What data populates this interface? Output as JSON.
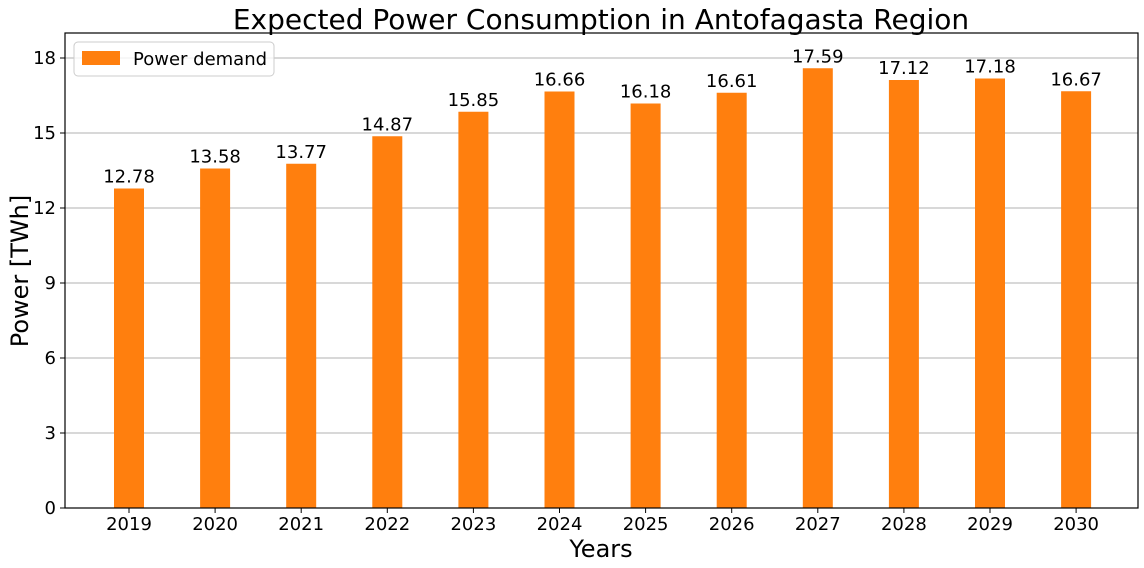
{
  "chart_data": {
    "type": "bar",
    "title": "Expected Power Consumption in Antofagasta Region",
    "xlabel": "Years",
    "ylabel": "Power [TWh]",
    "categories": [
      "2019",
      "2020",
      "2021",
      "2022",
      "2023",
      "2024",
      "2025",
      "2026",
      "2027",
      "2028",
      "2029",
      "2030"
    ],
    "series": [
      {
        "name": "Power demand",
        "color": "#ff7f0e",
        "values": [
          12.78,
          13.58,
          13.77,
          14.87,
          15.85,
          16.66,
          16.18,
          16.61,
          17.59,
          17.12,
          17.18,
          16.67
        ]
      }
    ],
    "data_labels": [
      "12.78",
      "13.58",
      "13.77",
      "14.87",
      "15.85",
      "16.66",
      "16.18",
      "16.61",
      "17.59",
      "17.12",
      "17.18",
      "16.67"
    ],
    "ylim": [
      0,
      19
    ],
    "yticks": [
      0,
      3,
      6,
      9,
      12,
      15,
      18
    ],
    "ytick_labels": [
      "0",
      "3",
      "6",
      "9",
      "12",
      "15",
      "18"
    ],
    "grid": "horizontal",
    "legend_position": "top-left"
  }
}
